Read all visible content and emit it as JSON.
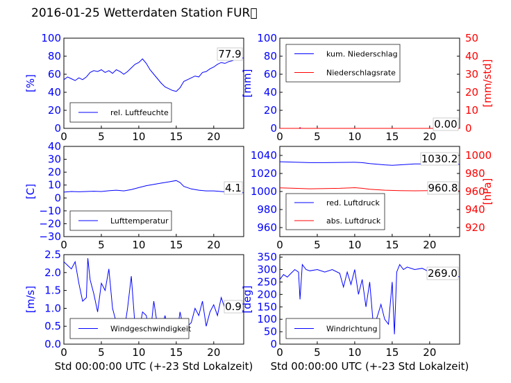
{
  "header": {
    "title": "2016-01-25 Wetterdaten Station FUR\u0000"
  },
  "colors": {
    "primary": "#0000ff",
    "secondary": "#ff0000",
    "axis": "#000000"
  },
  "chart_data": [
    {
      "id": "humidity",
      "type": "line",
      "ylabel": "[%]",
      "ylim": [
        0,
        100
      ],
      "yticks": [
        "0",
        "20",
        "40",
        "60",
        "80",
        "100"
      ],
      "xlim": [
        0,
        24
      ],
      "xticks": [
        "0",
        "5",
        "10",
        "15",
        "20"
      ],
      "xlabel": "",
      "legend_placement": "lower-left",
      "value_box": "77.9",
      "series": [
        {
          "name": "rel. Luftfeuchte",
          "color": "#0000ff",
          "x": [
            0,
            0.5,
            1,
            1.5,
            2,
            2.5,
            3,
            3.5,
            4,
            4.5,
            5,
            5.5,
            6,
            6.5,
            7,
            7.5,
            8,
            8.5,
            9,
            9.5,
            10,
            10.5,
            11,
            11.5,
            12,
            12.5,
            13,
            13.5,
            14,
            14.5,
            15,
            15.5,
            16,
            16.5,
            17,
            17.5,
            18,
            18.5,
            19,
            19.5,
            20,
            20.5,
            21,
            21.5,
            22,
            22.5,
            23,
            23.5,
            24
          ],
          "y": [
            54,
            57,
            55,
            53,
            56,
            54,
            57,
            62,
            64,
            63,
            65,
            62,
            64,
            61,
            65,
            63,
            60,
            63,
            67,
            71,
            73,
            77,
            72,
            65,
            60,
            55,
            50,
            46,
            44,
            42,
            41,
            45,
            52,
            54,
            56,
            58,
            57,
            62,
            63,
            66,
            68,
            71,
            73,
            72,
            74,
            75,
            77,
            78,
            78
          ]
        }
      ]
    },
    {
      "id": "precipitation",
      "type": "line",
      "ylabel": "[mm]",
      "ylim": [
        0,
        100
      ],
      "yticks": [
        "0",
        "20",
        "40",
        "60",
        "80",
        "100"
      ],
      "ylabel_right": "[mm/std]",
      "ylim_right": [
        0,
        50
      ],
      "yticks_right": [
        "0",
        "10",
        "20",
        "30",
        "40",
        "50"
      ],
      "xlim": [
        0,
        24
      ],
      "xticks": [
        "0",
        "5",
        "10",
        "15",
        "20"
      ],
      "xlabel": "",
      "legend_placement": "upper-left",
      "value_box": "0.00",
      "series": [
        {
          "name": "kum. Niederschlag",
          "color": "#0000ff",
          "axis": "left",
          "x": [
            0,
            24
          ],
          "y": [
            0,
            0
          ]
        },
        {
          "name": "Niederschlagsrate",
          "color": "#ff0000",
          "axis": "right",
          "x": [
            0,
            2.6,
            2.7,
            2.8,
            24
          ],
          "y": [
            0,
            0,
            0.5,
            0,
            0
          ]
        }
      ]
    },
    {
      "id": "temperature",
      "type": "line",
      "ylabel": "[C]",
      "ylim": [
        -30,
        40
      ],
      "yticks": [
        "−30",
        "−20",
        "−10",
        "0",
        "10",
        "20",
        "30",
        "40"
      ],
      "xlim": [
        0,
        24
      ],
      "xticks": [
        "0",
        "5",
        "10",
        "15",
        "20"
      ],
      "xlabel": "",
      "legend_placement": "lower-left",
      "value_box": "4.1",
      "series": [
        {
          "name": "Lufttemperatur",
          "color": "#0000ff",
          "x": [
            0,
            1,
            2,
            3,
            4,
            5,
            6,
            7,
            8,
            9,
            10,
            11,
            12,
            13,
            14,
            15,
            15.5,
            16,
            17,
            18,
            19,
            20,
            21,
            22,
            23,
            24
          ],
          "y": [
            4.5,
            5,
            4.8,
            5,
            5.2,
            5,
            5.6,
            6,
            5.5,
            6.5,
            8,
            9.5,
            10.5,
            11.5,
            12.5,
            13.5,
            12,
            9,
            7,
            6,
            5.5,
            5.5,
            5,
            4.5,
            4.3,
            4.1
          ]
        }
      ]
    },
    {
      "id": "pressure",
      "type": "line",
      "ylim": [
        950,
        1050
      ],
      "yticks": [
        "960",
        "980",
        "1000",
        "1020",
        "1040"
      ],
      "ylabel_right": "[hPa]",
      "ylim_right": [
        910,
        1010
      ],
      "yticks_right": [
        "920",
        "940",
        "960",
        "980",
        "1000"
      ],
      "xlim": [
        0,
        24
      ],
      "xticks": [
        "0",
        "5",
        "10",
        "15",
        "20"
      ],
      "xlabel": "",
      "legend_placement": "lower-left",
      "value_boxes": [
        "1030.2",
        "960.8"
      ],
      "series": [
        {
          "name": "red. Luftdruck",
          "color": "#0000ff",
          "axis": "left",
          "x": [
            0,
            2,
            4,
            6,
            8,
            10,
            11,
            12,
            14,
            15,
            16,
            18,
            20,
            22,
            24
          ],
          "y": [
            1033,
            1032.5,
            1032,
            1032,
            1032.2,
            1032.4,
            1032,
            1031,
            1029.5,
            1029,
            1029.5,
            1030.5,
            1030.5,
            1030.3,
            1030.2
          ]
        },
        {
          "name": "abs. Luftdruck",
          "color": "#ff0000",
          "axis": "right",
          "x": [
            0,
            2,
            4,
            6,
            8,
            10,
            11,
            12,
            14,
            16,
            18,
            20,
            22,
            24
          ],
          "y": [
            964,
            963.5,
            963,
            963.2,
            963.5,
            964.2,
            963.5,
            962.5,
            961.5,
            961,
            960.8,
            961,
            961.2,
            960.8
          ]
        }
      ]
    },
    {
      "id": "windspeed",
      "type": "line",
      "ylabel": "[m/s]",
      "ylim": [
        0,
        2.5
      ],
      "yticks": [
        "0.0",
        "0.5",
        "1.0",
        "1.5",
        "2.0",
        "2.5"
      ],
      "xlim": [
        0,
        24
      ],
      "xticks": [
        "0",
        "5",
        "10",
        "15",
        "20"
      ],
      "xlabel": "Std 00:00:00 UTC (+-23 Std Lokalzeit)",
      "legend_placement": "lower-left",
      "value_box": "0.9",
      "series": [
        {
          "name": "Windgeschwindigkeit",
          "color": "#0000ff",
          "x": [
            0,
            0.5,
            1,
            1.5,
            2,
            2.5,
            3,
            3.2,
            3.5,
            4,
            4.5,
            5,
            5.5,
            6,
            6.5,
            7,
            7.5,
            8,
            8.5,
            9,
            9.5,
            10,
            10.5,
            11,
            11.5,
            12,
            12.5,
            13,
            13.5,
            14,
            14.5,
            15,
            15.5,
            16,
            16.5,
            17,
            17.5,
            18,
            18.5,
            19,
            19.5,
            20,
            20.5,
            21,
            21.5,
            22,
            22.5,
            23,
            23.5,
            24
          ],
          "y": [
            2.3,
            2.2,
            2.1,
            2.3,
            1.7,
            1.2,
            1.3,
            2.4,
            1.8,
            1.4,
            0.9,
            1.7,
            1.5,
            2.1,
            1.0,
            0.6,
            0.4,
            0.3,
            1.0,
            1.9,
            0.5,
            0.3,
            0.9,
            0.8,
            0.2,
            1.2,
            0.5,
            0.4,
            0.8,
            0.3,
            0.7,
            0.2,
            0.9,
            0.4,
            0.5,
            0.6,
            1.0,
            0.8,
            1.2,
            0.5,
            0.9,
            1.1,
            0.8,
            1.3,
            1.0,
            1.1,
            0.9,
            1.0,
            0.9,
            0.9
          ]
        }
      ]
    },
    {
      "id": "winddirection",
      "type": "line",
      "ylabel": "[deg]",
      "ylim": [
        0,
        360
      ],
      "yticks": [
        "0",
        "50",
        "100",
        "150",
        "200",
        "250",
        "300",
        "350"
      ],
      "xlim": [
        0,
        24
      ],
      "xticks": [
        "0",
        "5",
        "10",
        "15",
        "20"
      ],
      "xlabel": "Std 00:00:00 UTC (+-23 Std Lokalzeit)",
      "legend_placement": "lower-left",
      "value_box": "269.0",
      "series": [
        {
          "name": "Windrichtung",
          "color": "#0000ff",
          "x": [
            0,
            0.5,
            1,
            1.5,
            2,
            2.5,
            2.7,
            3,
            3.5,
            4,
            5,
            6,
            7,
            8,
            8.5,
            9,
            9.5,
            10,
            10.5,
            11,
            11.5,
            12,
            12.5,
            13,
            13.5,
            14,
            14.5,
            15,
            15.3,
            15.6,
            16,
            16.5,
            17,
            18,
            19,
            20,
            21,
            22,
            23,
            24
          ],
          "y": [
            260,
            280,
            270,
            285,
            300,
            290,
            180,
            320,
            300,
            295,
            300,
            290,
            300,
            285,
            230,
            290,
            240,
            300,
            200,
            260,
            150,
            250,
            70,
            110,
            160,
            100,
            80,
            250,
            40,
            290,
            320,
            300,
            310,
            300,
            305,
            290,
            300,
            280,
            285,
            270
          ]
        }
      ]
    }
  ]
}
